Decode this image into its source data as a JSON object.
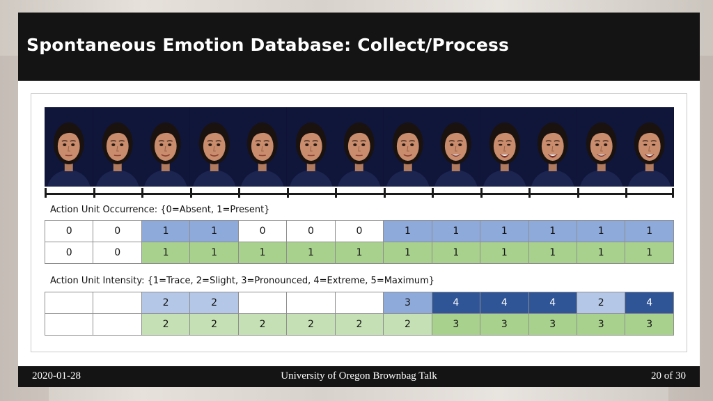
{
  "slide": {
    "title": "Spontaneous Emotion Database: Collect/Process"
  },
  "face_strip": {
    "frame_count": 13,
    "smile_levels": [
      0,
      0,
      1,
      1,
      0,
      0,
      0,
      1,
      2,
      3,
      3,
      2,
      3
    ]
  },
  "occurrence": {
    "label": "Action Unit Occurrence: {0=Absent, 1=Present}",
    "rows": [
      [
        {
          "v": "0",
          "c": "w"
        },
        {
          "v": "0",
          "c": "w"
        },
        {
          "v": "1",
          "c": "b"
        },
        {
          "v": "1",
          "c": "b"
        },
        {
          "v": "0",
          "c": "w"
        },
        {
          "v": "0",
          "c": "w"
        },
        {
          "v": "0",
          "c": "w"
        },
        {
          "v": "1",
          "c": "b"
        },
        {
          "v": "1",
          "c": "b"
        },
        {
          "v": "1",
          "c": "b"
        },
        {
          "v": "1",
          "c": "b"
        },
        {
          "v": "1",
          "c": "b"
        },
        {
          "v": "1",
          "c": "b"
        }
      ],
      [
        {
          "v": "0",
          "c": "w"
        },
        {
          "v": "0",
          "c": "w"
        },
        {
          "v": "1",
          "c": "g"
        },
        {
          "v": "1",
          "c": "g"
        },
        {
          "v": "1",
          "c": "g"
        },
        {
          "v": "1",
          "c": "g"
        },
        {
          "v": "1",
          "c": "g"
        },
        {
          "v": "1",
          "c": "g"
        },
        {
          "v": "1",
          "c": "g"
        },
        {
          "v": "1",
          "c": "g"
        },
        {
          "v": "1",
          "c": "g"
        },
        {
          "v": "1",
          "c": "g"
        },
        {
          "v": "1",
          "c": "g"
        }
      ]
    ]
  },
  "intensity": {
    "label": "Action Unit Intensity: {1=Trace, 2=Slight, 3=Pronounced, 4=Extreme, 5=Maximum}",
    "rows": [
      [
        {
          "v": "",
          "c": "w"
        },
        {
          "v": "",
          "c": "w"
        },
        {
          "v": "2",
          "c": "lb"
        },
        {
          "v": "2",
          "c": "lb"
        },
        {
          "v": "",
          "c": "w"
        },
        {
          "v": "",
          "c": "w"
        },
        {
          "v": "",
          "c": "w"
        },
        {
          "v": "3",
          "c": "b"
        },
        {
          "v": "4",
          "c": "db"
        },
        {
          "v": "4",
          "c": "db"
        },
        {
          "v": "4",
          "c": "db"
        },
        {
          "v": "2",
          "c": "lb"
        },
        {
          "v": "4",
          "c": "db"
        }
      ],
      [
        {
          "v": "",
          "c": "w"
        },
        {
          "v": "",
          "c": "w"
        },
        {
          "v": "2",
          "c": "lg"
        },
        {
          "v": "2",
          "c": "lg"
        },
        {
          "v": "2",
          "c": "lg"
        },
        {
          "v": "2",
          "c": "lg"
        },
        {
          "v": "2",
          "c": "lg"
        },
        {
          "v": "2",
          "c": "lg"
        },
        {
          "v": "3",
          "c": "mg"
        },
        {
          "v": "3",
          "c": "mg"
        },
        {
          "v": "3",
          "c": "mg"
        },
        {
          "v": "3",
          "c": "mg"
        },
        {
          "v": "3",
          "c": "mg"
        }
      ]
    ]
  },
  "footer": {
    "date": "2020-01-28",
    "center": "University of Oregon Brownbag Talk",
    "page": "20 of 30"
  },
  "colors": {
    "present_blue": "#8eaadb",
    "present_green": "#a9d18e",
    "intensity_light_blue": "#b4c7e7",
    "intensity_dark_blue": "#2f5597",
    "intensity_light_green": "#c5e0b4",
    "title_bar": "#141414"
  }
}
